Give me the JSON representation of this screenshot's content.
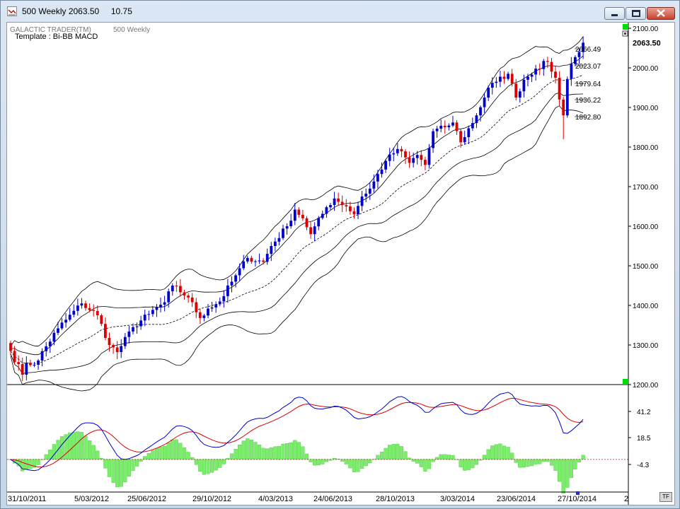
{
  "window": {
    "title": "500 Weekly 2063.50     10.75",
    "buttons": {
      "minimize": "minimize-icon",
      "maximize": "maximize-icon",
      "close": "close-icon"
    }
  },
  "chart_header": {
    "brand": "GALACTIC TRADER(TM)",
    "instrument": "500 Weekly",
    "template": "Template : Bi-BB MACD"
  },
  "price_axis": {
    "ticks": [
      "2100.00",
      "2000.00",
      "1900.00",
      "1800.00",
      "1700.00",
      "1600.00",
      "1500.00",
      "1400.00",
      "1300.00",
      "1200.00"
    ],
    "current_price": "2063.50"
  },
  "band_labels": [
    "2066.49",
    "2023.07",
    "1979.64",
    "1936.22",
    "1892.80"
  ],
  "macd_axis": {
    "ticks": [
      "41.2",
      "18.5",
      "-4.3"
    ]
  },
  "date_axis": {
    "ticks": [
      "31/10/2011",
      "5/03/2012",
      "25/06/2012",
      "29/10/2012",
      "4/03/2013",
      "24/06/2013",
      "28/10/2013",
      "3/03/2014",
      "23/06/2014",
      "27/10/2014"
    ],
    "trailing": "2"
  },
  "tf_button": "TF",
  "colors": {
    "up_candle": "#0000cc",
    "down_candle": "#dd0000",
    "macd": "#0000cc",
    "signal": "#dd0000",
    "histogram": "#7aee6a",
    "green_marker": "#00dd00"
  },
  "chart_data": {
    "type": "candlestick",
    "x_start": "2011-10-31",
    "x_end": "2014-11-17",
    "x_interval": "weekly",
    "ylim": [
      1200,
      2100
    ],
    "start_close": 1285,
    "last_close": 2063.5,
    "last_change": 10.75,
    "close_anchors": [
      [
        0,
        1285
      ],
      [
        3,
        1225
      ],
      [
        4,
        1255
      ],
      [
        6,
        1250
      ],
      [
        12,
        1342
      ],
      [
        18,
        1405
      ],
      [
        22,
        1375
      ],
      [
        25,
        1300
      ],
      [
        27,
        1282
      ],
      [
        31,
        1345
      ],
      [
        35,
        1378
      ],
      [
        39,
        1408
      ],
      [
        41,
        1450
      ],
      [
        45,
        1420
      ],
      [
        48,
        1368
      ],
      [
        50,
        1392
      ],
      [
        53,
        1410
      ],
      [
        56,
        1460
      ],
      [
        60,
        1520
      ],
      [
        64,
        1510
      ],
      [
        66,
        1550
      ],
      [
        70,
        1600
      ],
      [
        72,
        1642
      ],
      [
        74,
        1620
      ],
      [
        76,
        1580
      ],
      [
        80,
        1648
      ],
      [
        82,
        1670
      ],
      [
        85,
        1650
      ],
      [
        87,
        1630
      ],
      [
        89,
        1675
      ],
      [
        91,
        1695
      ],
      [
        95,
        1765
      ],
      [
        98,
        1795
      ],
      [
        101,
        1760
      ],
      [
        103,
        1780
      ],
      [
        105,
        1755
      ],
      [
        107,
        1840
      ],
      [
        110,
        1850
      ],
      [
        112,
        1862
      ],
      [
        114,
        1812
      ],
      [
        118,
        1880
      ],
      [
        121,
        1950
      ],
      [
        123,
        1965
      ],
      [
        126,
        1985
      ],
      [
        128,
        1925
      ],
      [
        130,
        1970
      ],
      [
        133,
        1998
      ],
      [
        136,
        2015
      ],
      [
        138,
        1975
      ],
      [
        139,
        1920
      ],
      [
        140,
        1880
      ],
      [
        141,
        1972
      ],
      [
        142,
        2010
      ],
      [
        144,
        2040
      ],
      [
        145,
        2063.5
      ]
    ],
    "bollinger": {
      "period": 20,
      "inner_mult": 1,
      "outer_mult": 2
    },
    "macd": {
      "fast": 12,
      "slow": 26,
      "signal": 9,
      "ylim_labels": [
        -4.3,
        18.5,
        41.2
      ]
    }
  }
}
